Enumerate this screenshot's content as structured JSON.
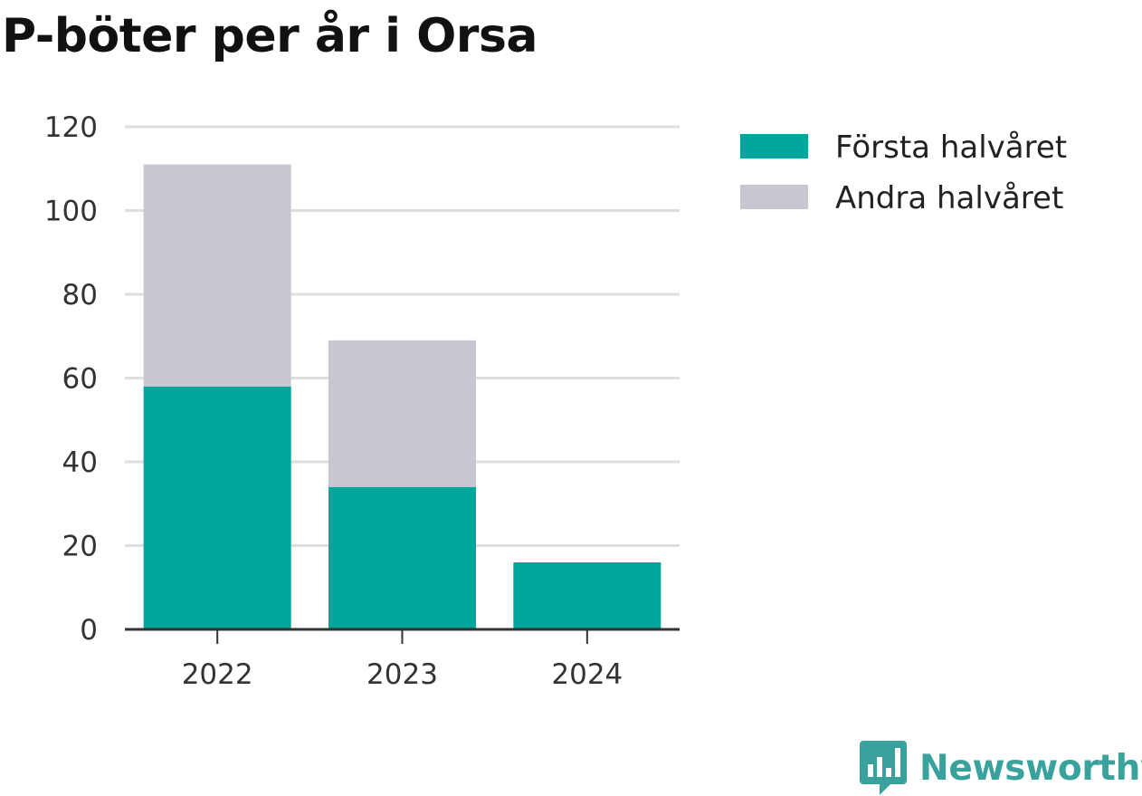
{
  "colors": {
    "first_half": "#00a59b",
    "second_half": "#c8c7d1",
    "grid": "#dedede",
    "axis": "#333333",
    "brand": "#3aa29c"
  },
  "chart_data": {
    "type": "bar",
    "stacked": true,
    "title": "P-böter per år i Orsa",
    "xlabel": "",
    "ylabel": "",
    "categories": [
      "2022",
      "2023",
      "2024"
    ],
    "series": [
      {
        "name": "Första halvåret",
        "values": [
          58,
          34,
          16
        ]
      },
      {
        "name": "Andra halvåret",
        "values": [
          53,
          35,
          0
        ]
      }
    ],
    "ylim": [
      0,
      120
    ],
    "yticks": [
      0,
      20,
      40,
      60,
      80,
      100,
      120
    ],
    "grid": true,
    "legend_position": "right"
  },
  "branding": {
    "logo_text": "Newsworthy",
    "logo_icon": "newsworthy-logo-icon"
  }
}
